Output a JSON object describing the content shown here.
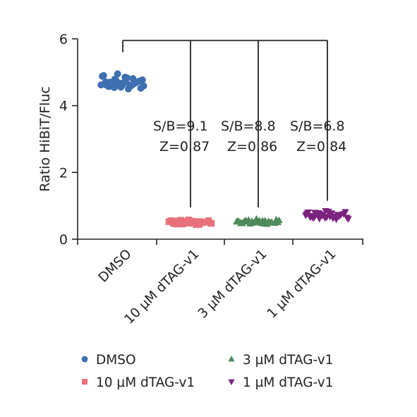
{
  "chart_data": {
    "type": "scatter",
    "title": "",
    "xlabel": "",
    "ylabel": "Ratio HiBiT/Fluc",
    "ylim": [
      0,
      6
    ],
    "yticks": [
      "0",
      "2",
      "4",
      "6"
    ],
    "grid": false,
    "legend_position": "bottom",
    "categories": [
      "DMSO",
      "10 µM dTAG-v1",
      "3 µM dTAG-v1",
      "1 µM dTAG-v1"
    ],
    "series": [
      {
        "name": "DMSO",
        "category": "DMSO",
        "marker": "circle",
        "color": "#3e6fb0",
        "values": [
          4.62,
          4.71,
          4.58,
          4.79,
          4.66,
          4.55,
          4.74,
          4.83,
          4.6,
          4.69,
          4.52,
          4.77,
          4.88,
          4.64,
          4.57,
          4.72,
          4.95,
          4.61,
          4.68,
          4.5,
          4.81,
          4.66,
          4.73,
          4.59,
          4.9,
          4.63,
          4.7,
          4.54,
          4.76,
          4.67,
          4.85,
          4.62
        ]
      },
      {
        "name": "10 µM dTAG-v1",
        "category": "10 µM dTAG-v1",
        "marker": "square",
        "color": "#e8707a",
        "values": [
          0.52,
          0.48,
          0.55,
          0.45,
          0.5,
          0.58,
          0.47,
          0.53,
          0.44,
          0.51,
          0.56,
          0.49,
          0.54,
          0.46,
          0.52,
          0.57,
          0.48,
          0.5,
          0.55,
          0.43,
          0.53,
          0.49,
          0.51,
          0.47,
          0.56,
          0.5,
          0.45,
          0.52,
          0.54,
          0.48,
          0.5,
          0.53
        ]
      },
      {
        "name": "3 µM dTAG-v1",
        "category": "3 µM dTAG-v1",
        "marker": "triangle-up",
        "color": "#4f8a5b",
        "values": [
          0.52,
          0.49,
          0.56,
          0.46,
          0.53,
          0.6,
          0.48,
          0.55,
          0.45,
          0.51,
          0.58,
          0.5,
          0.54,
          0.47,
          0.52,
          0.57,
          0.49,
          0.51,
          0.55,
          0.46,
          0.53,
          0.5,
          0.48,
          0.56,
          0.52,
          0.47,
          0.54,
          0.51,
          0.49,
          0.53,
          0.5,
          0.55
        ]
      },
      {
        "name": "1 µM dTAG-v1",
        "category": "1 µM dTAG-v1",
        "marker": "triangle-down",
        "color": "#7b237e",
        "values": [
          0.72,
          0.66,
          0.8,
          0.62,
          0.75,
          0.85,
          0.68,
          0.78,
          0.6,
          0.73,
          0.82,
          0.65,
          0.77,
          0.7,
          0.64,
          0.79,
          0.71,
          0.67,
          0.83,
          0.63,
          0.74,
          0.69,
          0.76,
          0.61,
          0.81,
          0.7,
          0.66,
          0.78,
          0.72,
          0.64,
          0.75,
          0.68
        ]
      }
    ],
    "annotations": [
      {
        "category": "10 µM dTAG-v1",
        "sb": "S/B=9.1",
        "z": "Z=0.87"
      },
      {
        "category": "3 µM dTAG-v1",
        "sb": "S/B=8.8",
        "z": "Z=0.86"
      },
      {
        "category": "1 µM dTAG-v1",
        "sb": "S/B=6.8",
        "z": "Z=0.84"
      }
    ]
  }
}
